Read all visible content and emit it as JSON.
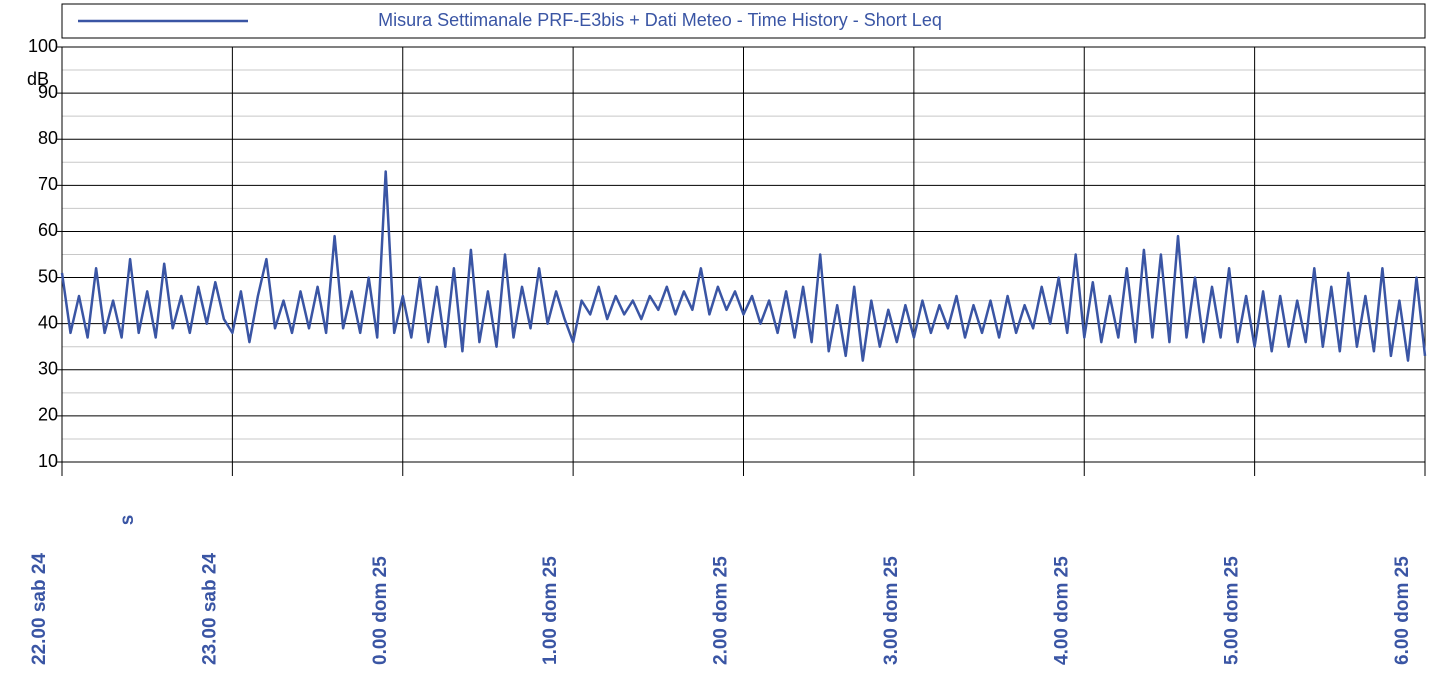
{
  "chart_data": {
    "type": "line",
    "title": "Misura Settimanale PRF-E3bis + Dati Meteo - Time History - Short Leq",
    "y_label": "dB",
    "x_label": "s",
    "ylim": [
      10,
      100
    ],
    "yticks": [
      10,
      20,
      30,
      40,
      50,
      60,
      70,
      80,
      90,
      100
    ],
    "minor_yticks": [
      15,
      25,
      35,
      45,
      55,
      65,
      75,
      85,
      95
    ],
    "xlim": [
      22,
      30
    ],
    "xticks": [
      {
        "value": 22,
        "label": "22.00 sab 24"
      },
      {
        "value": 23,
        "label": "23.00 sab 24"
      },
      {
        "value": 24,
        "label": "0.00 dom 25"
      },
      {
        "value": 25,
        "label": "1.00 dom 25"
      },
      {
        "value": 26,
        "label": "2.00 dom 25"
      },
      {
        "value": 27,
        "label": "3.00 dom 25"
      },
      {
        "value": 28,
        "label": "4.00 dom 25"
      },
      {
        "value": 29,
        "label": "5.00 dom 25"
      },
      {
        "value": 30,
        "label": "6.00 dom 25"
      }
    ],
    "grid": true,
    "x": [
      22,
      22.05,
      22.1,
      22.15,
      22.2,
      22.25,
      22.3,
      22.35,
      22.4,
      22.45,
      22.5,
      22.55,
      22.6,
      22.65,
      22.7,
      22.75,
      22.8,
      22.85,
      22.9,
      22.95,
      23,
      23.05,
      23.1,
      23.15,
      23.2,
      23.25,
      23.3,
      23.35,
      23.4,
      23.45,
      23.5,
      23.55,
      23.6,
      23.65,
      23.7,
      23.75,
      23.8,
      23.85,
      23.9,
      23.95,
      24,
      24.05,
      24.1,
      24.15,
      24.2,
      24.25,
      24.3,
      24.35,
      24.4,
      24.45,
      24.5,
      24.55,
      24.6,
      24.65,
      24.7,
      24.75,
      24.8,
      24.85,
      24.9,
      24.95,
      25,
      25.05,
      25.1,
      25.15,
      25.2,
      25.25,
      25.3,
      25.35,
      25.4,
      25.45,
      25.5,
      25.55,
      25.6,
      25.65,
      25.7,
      25.75,
      25.8,
      25.85,
      25.9,
      25.95,
      26,
      26.05,
      26.1,
      26.15,
      26.2,
      26.25,
      26.3,
      26.35,
      26.4,
      26.45,
      26.5,
      26.55,
      26.6,
      26.65,
      26.7,
      26.75,
      26.8,
      26.85,
      26.9,
      26.95,
      27,
      27.05,
      27.1,
      27.15,
      27.2,
      27.25,
      27.3,
      27.35,
      27.4,
      27.45,
      27.5,
      27.55,
      27.6,
      27.65,
      27.7,
      27.75,
      27.8,
      27.85,
      27.9,
      27.95,
      28,
      28.05,
      28.1,
      28.15,
      28.2,
      28.25,
      28.3,
      28.35,
      28.4,
      28.45,
      28.5,
      28.55,
      28.6,
      28.65,
      28.7,
      28.75,
      28.8,
      28.85,
      28.9,
      28.95,
      29,
      29.05,
      29.1,
      29.15,
      29.2,
      29.25,
      29.3,
      29.35,
      29.4,
      29.45,
      29.5,
      29.55,
      29.6,
      29.65,
      29.7,
      29.75,
      29.8,
      29.85,
      29.9,
      29.95,
      30
    ],
    "series": [
      {
        "name": "Misura Settimanale PRF-E3bis + Dati Meteo - Time History - Short Leq",
        "color": "#3a55a4",
        "values": [
          51,
          38,
          46,
          37,
          52,
          38,
          45,
          37,
          54,
          38,
          47,
          37,
          53,
          39,
          46,
          38,
          48,
          40,
          49,
          41,
          38,
          47,
          36,
          46,
          54,
          39,
          45,
          38,
          47,
          39,
          48,
          38,
          59,
          39,
          47,
          38,
          50,
          37,
          73,
          38,
          46,
          37,
          50,
          36,
          48,
          35,
          52,
          34,
          56,
          36,
          47,
          35,
          55,
          37,
          48,
          39,
          52,
          40,
          47,
          41,
          36,
          45,
          42,
          48,
          41,
          46,
          42,
          45,
          41,
          46,
          43,
          48,
          42,
          47,
          43,
          52,
          42,
          48,
          43,
          47,
          42,
          46,
          40,
          45,
          38,
          47,
          37,
          48,
          36,
          55,
          34,
          44,
          33,
          48,
          32,
          45,
          35,
          43,
          36,
          44,
          37,
          45,
          38,
          44,
          39,
          46,
          37,
          44,
          38,
          45,
          37,
          46,
          38,
          44,
          39,
          48,
          40,
          50,
          38,
          55,
          37,
          49,
          36,
          46,
          37,
          52,
          36,
          56,
          37,
          55,
          36,
          59,
          37,
          50,
          36,
          48,
          37,
          52,
          36,
          46,
          35,
          47,
          34,
          46,
          35,
          45,
          36,
          52,
          35,
          48,
          34,
          51,
          35,
          46,
          34,
          52,
          33,
          45,
          32,
          50,
          33
        ]
      }
    ]
  }
}
